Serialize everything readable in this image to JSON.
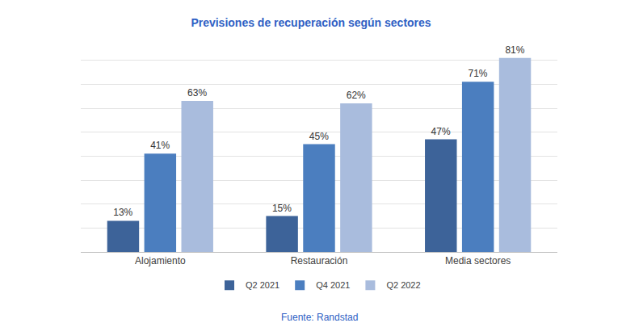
{
  "chart_data": {
    "type": "bar",
    "title": "Previsiones de recuperación según sectores",
    "source": "Fuente: Randstad",
    "categories": [
      "Alojamiento",
      "Restauración",
      "Media sectores"
    ],
    "series": [
      {
        "name": "Q2 2021",
        "color": "#3d6399",
        "values": [
          13,
          15,
          47
        ],
        "value_labels": [
          "13%",
          "15%",
          "47%"
        ]
      },
      {
        "name": "Q4 2021",
        "color": "#4b7ebf",
        "values": [
          41,
          45,
          71
        ],
        "value_labels": [
          "41%",
          "45%",
          "71%"
        ]
      },
      {
        "name": "Q2 2022",
        "color": "#a9bcdd",
        "values": [
          63,
          62,
          81
        ],
        "value_labels": [
          "63%",
          "62%",
          "81%"
        ]
      }
    ],
    "ylim": [
      0,
      90
    ],
    "yticks": [
      0,
      10,
      20,
      30,
      40,
      50,
      60,
      70,
      80,
      90
    ],
    "grid": true,
    "data_labels": true,
    "tick_labels": "x",
    "legend": "bottom"
  }
}
